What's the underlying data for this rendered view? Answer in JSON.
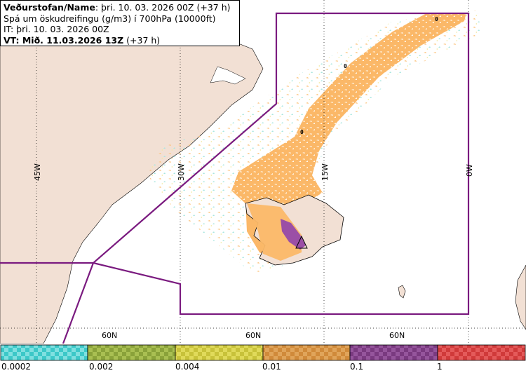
{
  "header": {
    "line1_bold": "Veðurstofan/Name",
    "line1_rest": ": þri. 10. 03. 2026 00Z (+37 h)",
    "line2": "Spá um öskudreifingu (g/m3) í 700hPa (10000ft)",
    "line3": "IT: þri. 10. 03. 2026 00Z",
    "line4_bold": "VT: Mið. 11.03.2026 13Z",
    "line4_rest": " (+37 h)"
  },
  "map": {
    "meridian_labels": [
      "45W",
      "30W",
      "15W",
      "0W"
    ],
    "parallel_labels": [
      "60N",
      "60N",
      "60N"
    ],
    "contour_labels": [
      "0",
      "0",
      "0"
    ],
    "colors": {
      "land": "#f2e0d4",
      "ash_low": "#fbb868",
      "ash_high": "#9b4fa6",
      "boundary": "#7a1a7f"
    }
  },
  "legend": {
    "ticks": [
      "0.0002",
      "0.002",
      "0.004",
      "0.01",
      "0.1",
      "1"
    ],
    "colors": [
      "#3cc8c8",
      "#8aa23a",
      "#c8c23a",
      "#d08a3a",
      "#7a3a80",
      "#d03a3a"
    ]
  }
}
